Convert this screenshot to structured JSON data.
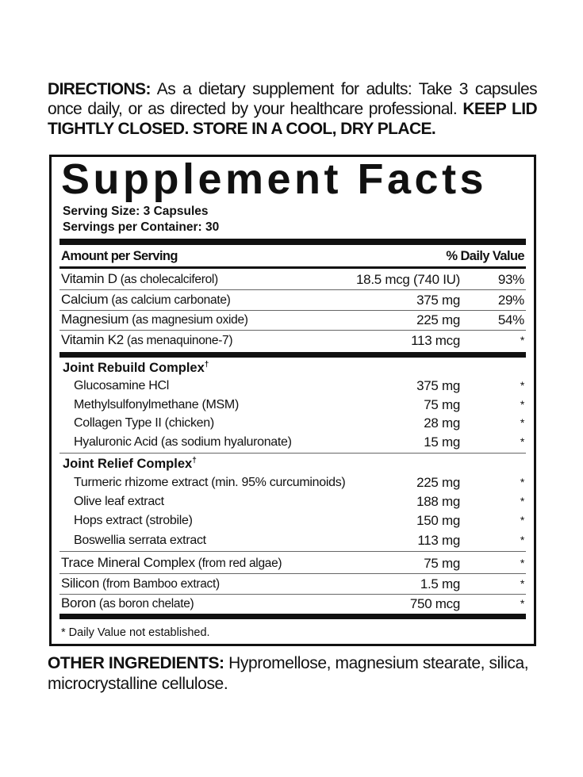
{
  "directions": {
    "label": "DIRECTIONS:",
    "text": " As a dietary supplement for adults: Take 3 capsules once daily, or as directed by your healthcare professional. ",
    "warning": "KEEP LID TIGHTLY CLOSED. STORE IN A COOL, DRY PLACE."
  },
  "facts": {
    "title": "Supplement Facts",
    "serving_size": "Serving Size: 3 Capsules",
    "servings_per_container": "Servings per Container: 30",
    "amount_header": "Amount per Serving",
    "dv_header": "% Daily Value",
    "main": [
      {
        "name": "Vitamin D",
        "detail": " (as cholecalciferol)",
        "amount": "18.5 mcg (740 IU)",
        "dv": "93%"
      },
      {
        "name": "Calcium",
        "detail": " (as calcium carbonate)",
        "amount": "375 mg",
        "dv": "29%"
      },
      {
        "name": "Magnesium",
        "detail": " (as magnesium oxide)",
        "amount": "225 mg",
        "dv": "54%"
      },
      {
        "name": "Vitamin K2",
        "detail": " (as menaquinone-7)",
        "amount": "113 mcg",
        "dv": "*"
      }
    ],
    "rebuild": {
      "title": "Joint Rebuild Complex",
      "mark": "†",
      "items": [
        {
          "name": "Glucosamine HCl",
          "amount": "375 mg",
          "dv": "*"
        },
        {
          "name": "Methylsulfonylmethane (MSM)",
          "amount": "75 mg",
          "dv": "*"
        },
        {
          "name": "Collagen Type II (chicken)",
          "amount": "28 mg",
          "dv": "*"
        },
        {
          "name": "Hyaluronic Acid (as sodium hyaluronate)",
          "amount": "15 mg",
          "dv": "*"
        }
      ]
    },
    "relief": {
      "title": "Joint Relief Complex",
      "mark": "†",
      "items": [
        {
          "name": "Turmeric rhizome extract (min. 95% curcuminoids)",
          "amount": "225 mg",
          "dv": "*"
        },
        {
          "name": "Olive leaf extract",
          "amount": "188 mg",
          "dv": "*"
        },
        {
          "name": "Hops extract (strobile)",
          "amount": "150 mg",
          "dv": "*"
        },
        {
          "name": "Boswellia serrata extract",
          "amount": "113 mg",
          "dv": "*"
        }
      ]
    },
    "other_rows": [
      {
        "name": "Trace Mineral Complex",
        "detail": " (from red algae)",
        "amount": "75 mg",
        "dv": "*"
      },
      {
        "name": "Silicon",
        "detail": " (from Bamboo extract)",
        "amount": "1.5 mg",
        "dv": "*"
      },
      {
        "name": "Boron",
        "detail": " (as boron chelate)",
        "amount": "750 mcg",
        "dv": "*"
      }
    ],
    "footnote": "* Daily Value not established."
  },
  "other_ingredients": {
    "label": "OTHER INGREDIENTS:",
    "text": " Hypromellose, magnesium stearate, silica, microcrystalline cellulose."
  }
}
